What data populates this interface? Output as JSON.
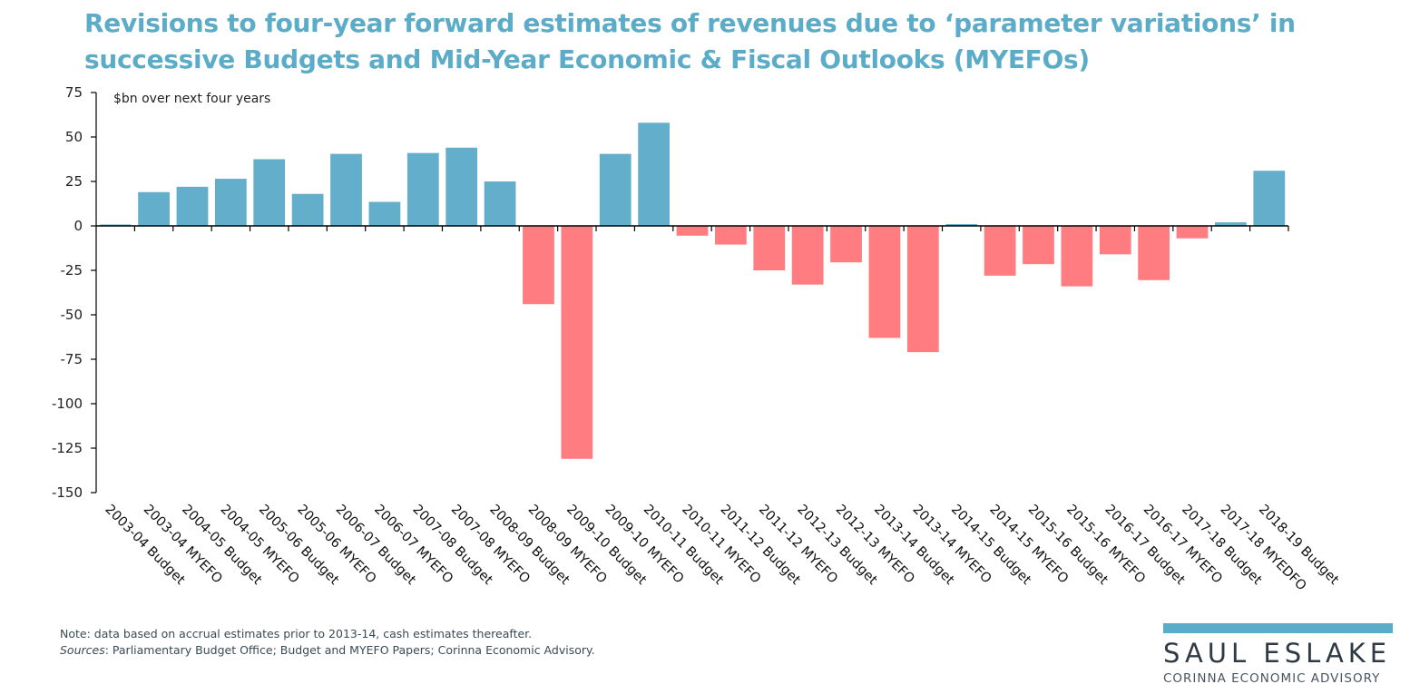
{
  "colors": {
    "positive": "#62AECB",
    "negative": "#FF7C80",
    "title": "#5BACC8",
    "axis": "#000000",
    "logo_bar": "#5BACC8",
    "logo_text": "#2F3A45"
  },
  "chart_data": {
    "type": "bar",
    "title": "Revisions to four-year forward estimates of revenues due to ‘parameter variations’ in successive Budgets and Mid-Year Economic & Fiscal Outlooks (MYEFOs)",
    "title_lines": [
      "Revisions to four-year forward estimates of revenues due to ‘parameter variations’ in",
      "successive Budgets and Mid-Year Economic & Fiscal Outlooks (MYEFOs)"
    ],
    "ylabel": "$bn over next four years",
    "xlabel": "",
    "ylim": [
      -150,
      75
    ],
    "yticks": [
      75,
      50,
      25,
      0,
      -25,
      -50,
      -75,
      -100,
      -125,
      -150
    ],
    "ytick_labels": [
      "75",
      "50",
      "25",
      "0",
      "-25",
      "-50",
      "-75",
      "-100",
      "-125",
      "-150"
    ],
    "grid": false,
    "legend": "none",
    "categories": [
      "2003-04 Budget",
      "2003-04 MYEFO",
      "2004-05 Budget",
      "2004-05 MYEFO",
      "2005-06 Budget",
      "2005-06 MYEFO",
      "2006-07 Budget",
      "2006-07 MYEFO",
      "2007-08 Budget",
      "2007-08 MYEFO",
      "2008-09 Budget",
      "2008-09 MYEFO",
      "2009-10 Budget",
      "2009-10 MYEFO",
      "2010-11 Budget",
      "2010-11 MYEFO",
      "2011-12 Budget",
      "2011-12 MYEFO",
      "2012-13 Budget",
      "2012-13 MYEFO",
      "2013-14 Budget",
      "2013-14 MYEFO",
      "2014-15 Budget",
      "2014-15 MYEFO",
      "2015-16 Budget",
      "2015-16 MYEFO",
      "2016-17 Budget",
      "2016-17 MYEFO",
      "2017-18 Budget",
      "2017-18 MYEDFO",
      "2018-19 Budget"
    ],
    "values": [
      0.8,
      19,
      22,
      26.5,
      37.5,
      18,
      40.5,
      13.5,
      41,
      44,
      25,
      -44,
      -131,
      40.5,
      58,
      -5.5,
      -10.5,
      -25,
      -33,
      -20.5,
      -63,
      -71,
      1,
      -28,
      -21.5,
      -34,
      -16,
      -30.5,
      -7,
      2,
      31
    ],
    "color_rule": "positive values blue, negative values red"
  },
  "footer": {
    "note_label": "Note",
    "note_text": ": data based on accrual estimates prior to 2013-14, cash estimates thereafter.",
    "sources_label": "Sources",
    "sources_text": ": Parliamentary Budget Office; Budget and MYEFO Papers; Corinna Economic Advisory."
  },
  "logo": {
    "name": "SAUL ESLAKE",
    "subtitle": "CORINNA ECONOMIC ADVISORY"
  }
}
